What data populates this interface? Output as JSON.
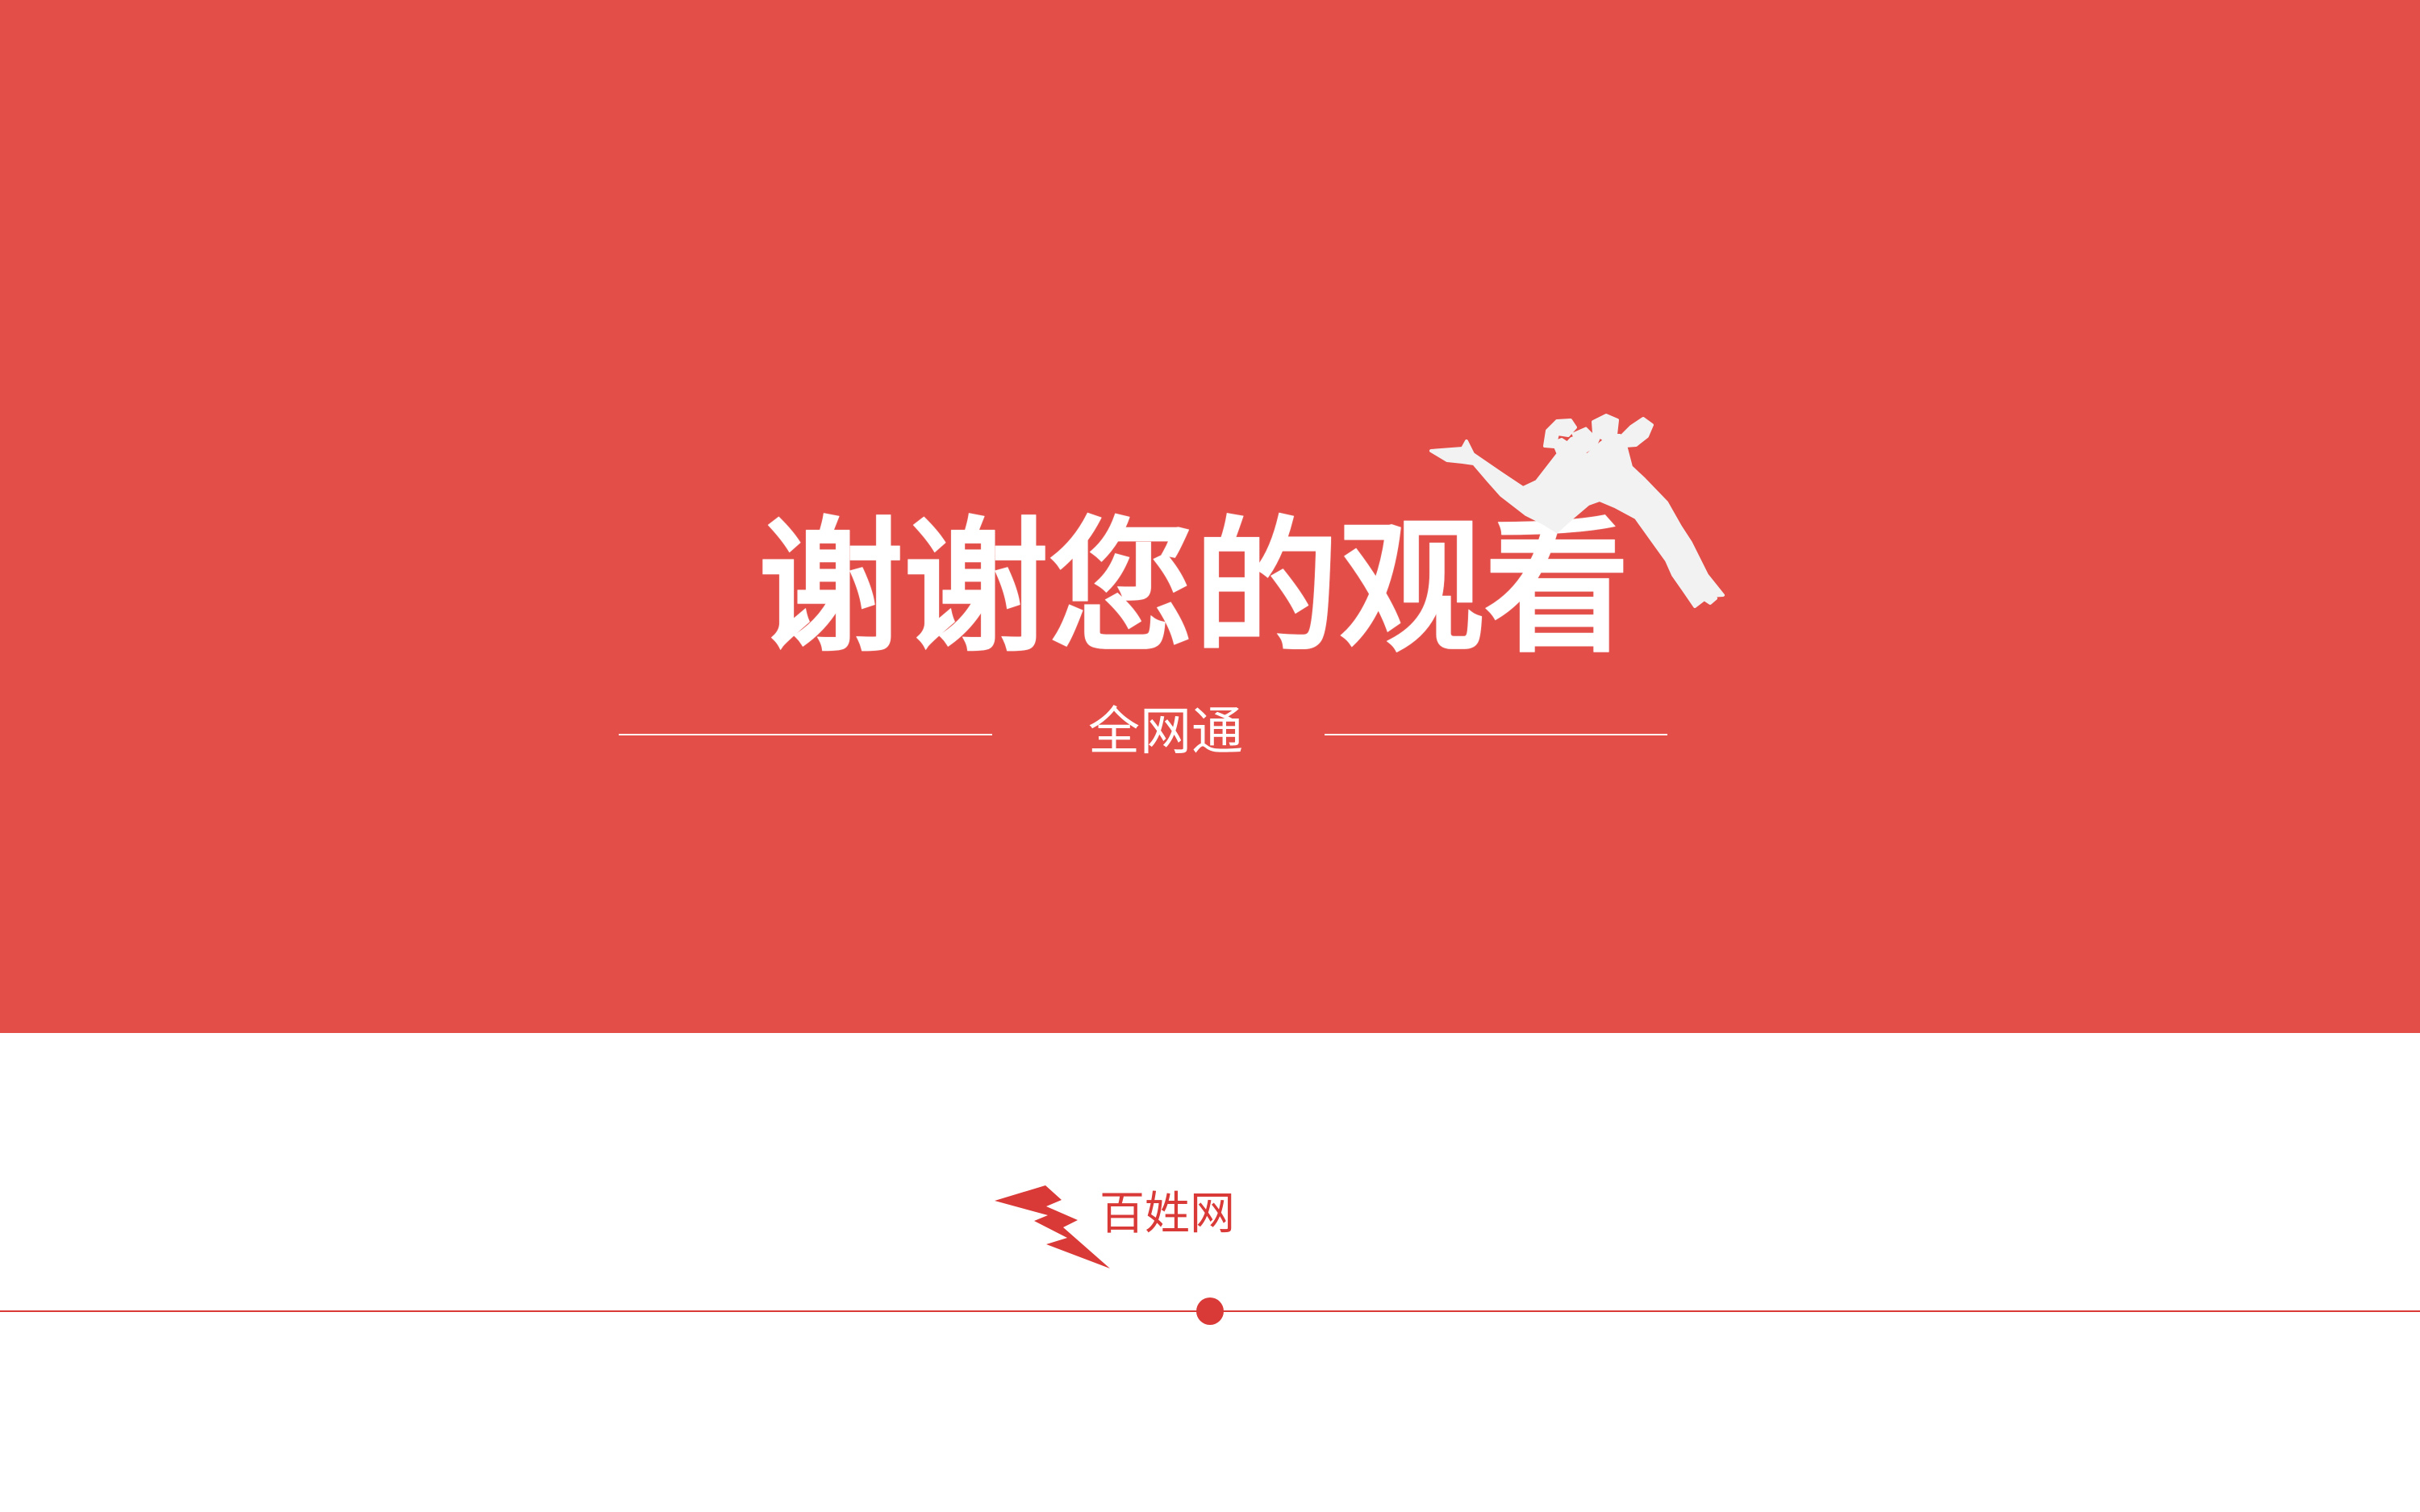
{
  "slide": {
    "title": "谢谢您的观看",
    "subtitle": "全网通",
    "brand": "百姓网",
    "icons": {
      "runner": "running-person-icon",
      "brand_logo": "lightning-bolt-icon"
    },
    "colors": {
      "primary_red": "#E34E49",
      "accent_red": "#D93A37",
      "white": "#FFFFFF",
      "runner": "#F2F2F2"
    }
  }
}
